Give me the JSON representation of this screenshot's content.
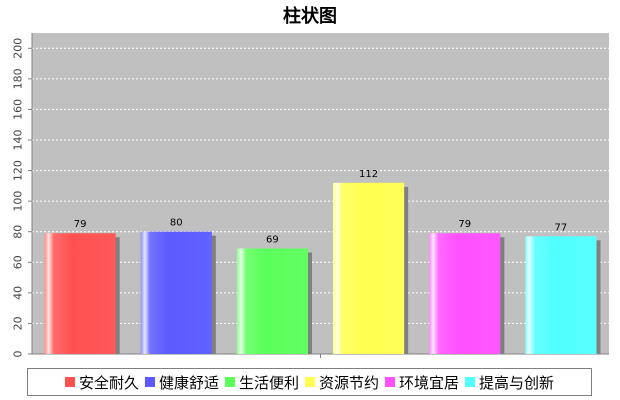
{
  "chart_data": {
    "type": "bar",
    "title": "柱状图",
    "categories": [
      "安全耐久",
      "健康舒适",
      "生活便利",
      "资源节约",
      "环境宜居",
      "提高与创新"
    ],
    "values": [
      79,
      80,
      69,
      112,
      79,
      77
    ],
    "colors": [
      "#ff5050",
      "#5a5aff",
      "#5aff5a",
      "#ffff50",
      "#ff50ff",
      "#50ffff"
    ],
    "ylim": [
      0,
      210
    ],
    "yticks": [
      0,
      20,
      40,
      60,
      80,
      100,
      120,
      140,
      160,
      180,
      200
    ],
    "grid": true,
    "legend": "bottom"
  }
}
